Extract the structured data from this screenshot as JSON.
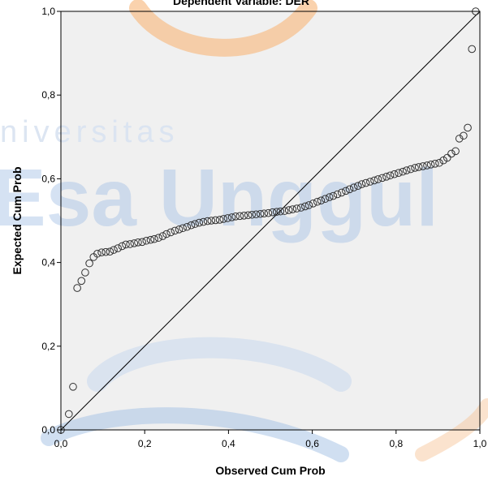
{
  "watermark": {
    "line1": "niversitas",
    "line2": "Esa Unggul"
  },
  "colors": {
    "plot_background": "#f0f0f0",
    "marker_stroke": "#303030",
    "reference_line": "#000000",
    "watermark_blue": "#8fb2dc",
    "watermark_orange": "#f6b77c"
  },
  "chart_data": {
    "type": "scatter",
    "title": "Dependent Variable: DER",
    "xlabel": "Observed Cum Prob",
    "ylabel": "Expected Cum Prob",
    "xlim": [
      0,
      1
    ],
    "ylim": [
      0,
      1
    ],
    "x_ticks": [
      "0,0",
      "0,2",
      "0,4",
      "0,6",
      "0,8",
      "1,0"
    ],
    "y_ticks": [
      "0,0",
      "0,2",
      "0,4",
      "0,6",
      "0,8",
      "1,0"
    ],
    "grid": false,
    "legend": "none",
    "reference_line": {
      "from": [
        0,
        0
      ],
      "to": [
        1,
        1
      ]
    },
    "points": [
      [
        0.0,
        0.0
      ],
      [
        0.019,
        0.038
      ],
      [
        0.029,
        0.103
      ],
      [
        0.039,
        0.339
      ],
      [
        0.049,
        0.356
      ],
      [
        0.058,
        0.376
      ],
      [
        0.068,
        0.398
      ],
      [
        0.078,
        0.413
      ],
      [
        0.087,
        0.421
      ],
      [
        0.097,
        0.424
      ],
      [
        0.107,
        0.425
      ],
      [
        0.117,
        0.426
      ],
      [
        0.126,
        0.43
      ],
      [
        0.136,
        0.434
      ],
      [
        0.146,
        0.439
      ],
      [
        0.155,
        0.443
      ],
      [
        0.165,
        0.444
      ],
      [
        0.175,
        0.446
      ],
      [
        0.184,
        0.448
      ],
      [
        0.194,
        0.449
      ],
      [
        0.204,
        0.452
      ],
      [
        0.214,
        0.454
      ],
      [
        0.223,
        0.456
      ],
      [
        0.233,
        0.459
      ],
      [
        0.243,
        0.463
      ],
      [
        0.252,
        0.468
      ],
      [
        0.262,
        0.472
      ],
      [
        0.272,
        0.476
      ],
      [
        0.282,
        0.479
      ],
      [
        0.291,
        0.482
      ],
      [
        0.301,
        0.485
      ],
      [
        0.311,
        0.489
      ],
      [
        0.32,
        0.492
      ],
      [
        0.33,
        0.495
      ],
      [
        0.34,
        0.497
      ],
      [
        0.35,
        0.499
      ],
      [
        0.359,
        0.5
      ],
      [
        0.369,
        0.501
      ],
      [
        0.379,
        0.502
      ],
      [
        0.388,
        0.504
      ],
      [
        0.398,
        0.506
      ],
      [
        0.408,
        0.508
      ],
      [
        0.417,
        0.51
      ],
      [
        0.427,
        0.511
      ],
      [
        0.437,
        0.512
      ],
      [
        0.447,
        0.513
      ],
      [
        0.456,
        0.514
      ],
      [
        0.466,
        0.515
      ],
      [
        0.476,
        0.516
      ],
      [
        0.485,
        0.517
      ],
      [
        0.495,
        0.518
      ],
      [
        0.505,
        0.52
      ],
      [
        0.515,
        0.521
      ],
      [
        0.524,
        0.522
      ],
      [
        0.534,
        0.523
      ],
      [
        0.544,
        0.525
      ],
      [
        0.553,
        0.527
      ],
      [
        0.563,
        0.529
      ],
      [
        0.573,
        0.531
      ],
      [
        0.583,
        0.534
      ],
      [
        0.592,
        0.537
      ],
      [
        0.602,
        0.541
      ],
      [
        0.612,
        0.545
      ],
      [
        0.621,
        0.548
      ],
      [
        0.631,
        0.552
      ],
      [
        0.641,
        0.556
      ],
      [
        0.65,
        0.559
      ],
      [
        0.66,
        0.563
      ],
      [
        0.67,
        0.567
      ],
      [
        0.68,
        0.571
      ],
      [
        0.689,
        0.575
      ],
      [
        0.699,
        0.579
      ],
      [
        0.709,
        0.583
      ],
      [
        0.718,
        0.587
      ],
      [
        0.728,
        0.59
      ],
      [
        0.738,
        0.593
      ],
      [
        0.748,
        0.596
      ],
      [
        0.757,
        0.599
      ],
      [
        0.767,
        0.602
      ],
      [
        0.777,
        0.605
      ],
      [
        0.786,
        0.608
      ],
      [
        0.796,
        0.611
      ],
      [
        0.806,
        0.614
      ],
      [
        0.816,
        0.617
      ],
      [
        0.825,
        0.62
      ],
      [
        0.835,
        0.623
      ],
      [
        0.845,
        0.626
      ],
      [
        0.854,
        0.628
      ],
      [
        0.864,
        0.63
      ],
      [
        0.874,
        0.632
      ],
      [
        0.883,
        0.634
      ],
      [
        0.893,
        0.636
      ],
      [
        0.903,
        0.638
      ],
      [
        0.913,
        0.644
      ],
      [
        0.922,
        0.65
      ],
      [
        0.932,
        0.66
      ],
      [
        0.942,
        0.666
      ],
      [
        0.951,
        0.696
      ],
      [
        0.961,
        0.703
      ],
      [
        0.971,
        0.722
      ],
      [
        0.981,
        0.91
      ],
      [
        0.99,
        1.0
      ]
    ]
  }
}
